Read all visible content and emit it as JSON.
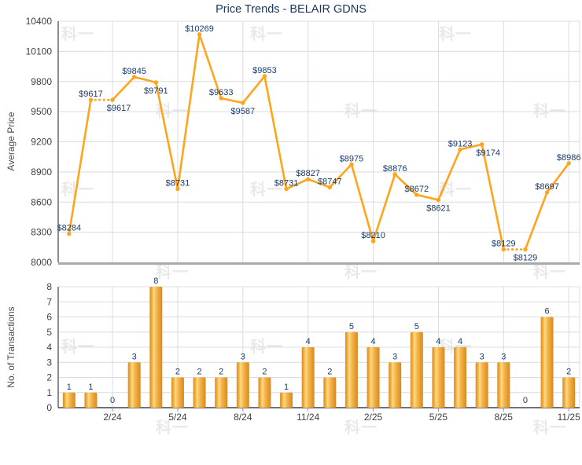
{
  "page_title": "Price Trends - BELAIR GDNS",
  "watermark": {
    "text": "科一"
  },
  "colors": {
    "line_orange": "#ffa41d",
    "marker_orange": "#ffa41d",
    "data_label_navy": "#1b3a6b",
    "title_navy": "#17365d",
    "axis_text_gray": "#3f3f3f",
    "axis_title_gray": "#4d4d4d",
    "grid_gray": "#dcdcdc",
    "axis_line_dark": "#444444",
    "price_baseline_gray": "#a9a9a9",
    "bar_edge_orange": "#d98e24",
    "bar_highlight": "#ffda85",
    "tick_mark_gray": "#999999",
    "watermark_gray": "#e9e9e9"
  },
  "chart_data": [
    {
      "type": "line",
      "title": "Price Trends - BELAIR GDNS",
      "ylabel": "Average Price",
      "ylim": [
        8000,
        10400
      ],
      "ytick_step": 300,
      "grid": true,
      "legend_position": "none",
      "n_points": 24,
      "values": [
        8284,
        9617,
        9617,
        9845,
        9791,
        8731,
        10269,
        9633,
        9587,
        9853,
        8731,
        8827,
        8747,
        8975,
        8210,
        8876,
        8672,
        8621,
        9123,
        9174,
        8129,
        8129,
        8697,
        8986
      ],
      "data_labels": [
        "$8284",
        "$9617",
        "$9617",
        "$9845",
        "$9791",
        "$8731",
        "$10269",
        "$9633",
        "$9587",
        "$9853",
        "$8731",
        "$8827",
        "$8747",
        "$8975",
        "$8210",
        "$8876",
        "$8672",
        "$8621",
        "$9123",
        "$9174",
        "$8129",
        "$8129",
        "$8697",
        "$8986"
      ],
      "label_prefix": "$",
      "label_placement": [
        "above",
        "above",
        "below-right",
        "above",
        "below",
        "above",
        "above",
        "above",
        "below",
        "above",
        "above",
        "above",
        "above",
        "above",
        "above",
        "above",
        "above",
        "below",
        "above",
        "below-right",
        "above",
        "below",
        "above",
        "above"
      ],
      "dotted_segments": [
        [
          2,
          3
        ],
        [
          21,
          22
        ]
      ],
      "x_tick_labels": [
        "2/24",
        "5/24",
        "8/24",
        "11/24",
        "2/25",
        "5/25",
        "8/25",
        "11/25"
      ],
      "x_tick_positions": [
        3,
        6,
        9,
        12,
        15,
        18,
        21,
        24
      ]
    },
    {
      "type": "bar",
      "ylabel": "No. of Transactions",
      "ylim": [
        0,
        8
      ],
      "ytick_step": 1,
      "grid": true,
      "legend_position": "none",
      "n_points": 24,
      "values": [
        1,
        1,
        0,
        3,
        8,
        2,
        2,
        2,
        3,
        2,
        1,
        4,
        2,
        5,
        4,
        3,
        5,
        4,
        4,
        3,
        3,
        0,
        6,
        2
      ],
      "x_tick_labels": [
        "2/24",
        "5/24",
        "8/24",
        "11/24",
        "2/25",
        "5/25",
        "8/25",
        "11/25"
      ],
      "x_tick_positions": [
        3,
        6,
        9,
        12,
        15,
        18,
        21,
        24
      ]
    }
  ]
}
